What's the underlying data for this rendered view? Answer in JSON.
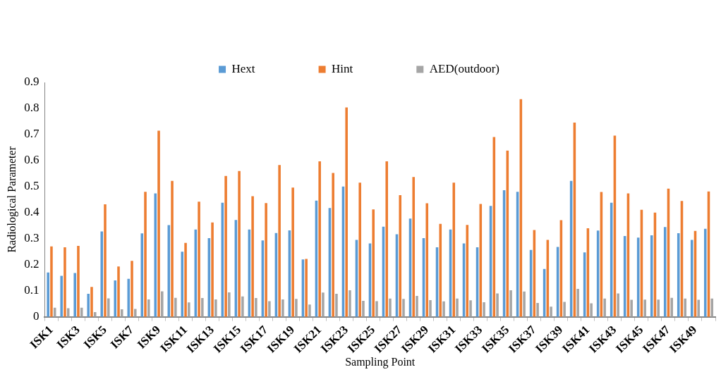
{
  "chart_data": {
    "type": "bar",
    "xlabel": "Sampling Point",
    "ylabel": "Radiological Parameter",
    "categories": [
      "ISK1",
      null,
      "ISK3",
      null,
      "ISK5",
      null,
      "ISK7",
      null,
      "ISK9",
      null,
      "ISK11",
      null,
      "ISK13",
      null,
      "ISK15",
      null,
      "ISK17",
      null,
      "ISK19",
      null,
      "ISK21",
      null,
      "ISK23",
      null,
      "ISK25",
      null,
      "ISK27",
      null,
      "ISK29",
      null,
      "ISK31",
      null,
      "ISK33",
      null,
      "ISK35",
      null,
      "ISK37",
      null,
      "ISK39",
      null,
      "ISK41",
      null,
      "ISK43",
      null,
      "ISK45",
      null,
      "ISK47",
      null,
      "ISK49",
      null
    ],
    "series": [
      {
        "name": "Hext",
        "color": "#5b9bd5",
        "values": [
          0.17,
          0.157,
          0.168,
          0.088,
          0.328,
          0.14,
          0.146,
          0.32,
          0.474,
          0.352,
          0.25,
          0.335,
          0.302,
          0.438,
          0.372,
          0.335,
          0.293,
          0.322,
          0.332,
          0.22,
          0.446,
          0.418,
          0.5,
          0.295,
          0.282,
          0.346,
          0.317,
          0.377,
          0.302,
          0.267,
          0.335,
          0.282,
          0.267,
          0.426,
          0.486,
          0.48,
          0.257,
          0.184,
          0.268,
          0.522,
          0.247,
          0.331,
          0.438,
          0.31,
          0.304,
          0.313,
          0.345,
          0.321,
          0.295,
          0.338
        ]
      },
      {
        "name": "Hint",
        "color": "#ed7d31",
        "values": [
          0.27,
          0.267,
          0.272,
          0.115,
          0.432,
          0.193,
          0.215,
          0.48,
          0.715,
          0.522,
          0.284,
          0.442,
          0.362,
          0.541,
          0.56,
          0.463,
          0.437,
          0.583,
          0.496,
          0.222,
          0.597,
          0.552,
          0.804,
          0.515,
          0.412,
          0.597,
          0.467,
          0.537,
          0.436,
          0.357,
          0.515,
          0.353,
          0.433,
          0.69,
          0.638,
          0.836,
          0.333,
          0.295,
          0.371,
          0.746,
          0.34,
          0.479,
          0.696,
          0.474,
          0.411,
          0.4,
          0.492,
          0.445,
          0.33,
          0.481
        ]
      },
      {
        "name": "AED(outdoor)",
        "color": "#a5a5a5",
        "values": [
          0.035,
          0.033,
          0.035,
          0.018,
          0.071,
          0.029,
          0.03,
          0.067,
          0.098,
          0.073,
          0.055,
          0.072,
          0.067,
          0.094,
          0.078,
          0.072,
          0.06,
          0.067,
          0.069,
          0.047,
          0.093,
          0.088,
          0.102,
          0.061,
          0.06,
          0.07,
          0.069,
          0.08,
          0.064,
          0.059,
          0.07,
          0.063,
          0.056,
          0.09,
          0.102,
          0.097,
          0.053,
          0.039,
          0.057,
          0.107,
          0.052,
          0.07,
          0.09,
          0.065,
          0.066,
          0.066,
          0.073,
          0.07,
          0.065,
          0.07
        ]
      }
    ],
    "ylim": [
      0,
      0.9
    ],
    "yticks": [
      0,
      0.1,
      0.2,
      0.3,
      0.4,
      0.5,
      0.6,
      0.7,
      0.8,
      0.9
    ],
    "grid": false,
    "legend": "top"
  }
}
